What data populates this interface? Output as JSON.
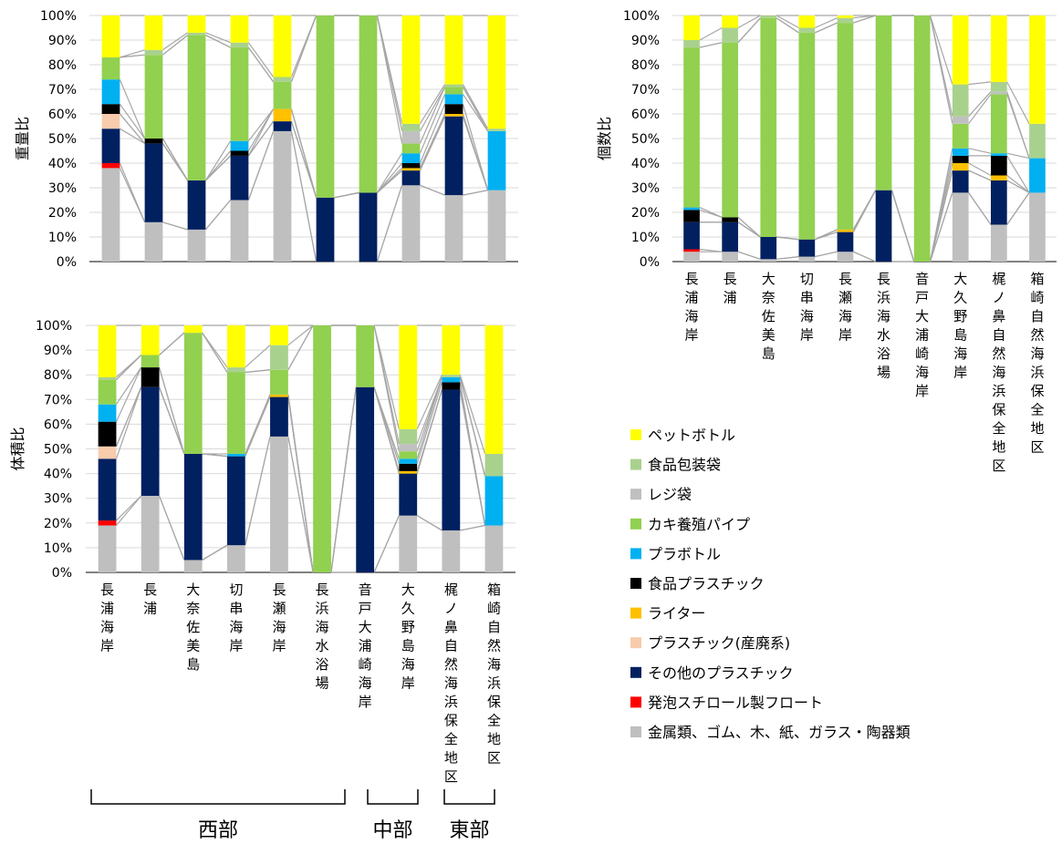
{
  "legend": [
    {
      "name": "ペットボトル",
      "color": "#FFFF00"
    },
    {
      "name": "食品包装袋",
      "color": "#A9D18E"
    },
    {
      "name": "レジ袋",
      "color": "#C0C0C0"
    },
    {
      "name": "カキ養殖パイプ",
      "color": "#92D050"
    },
    {
      "name": "プラボトル",
      "color": "#00B0F0"
    },
    {
      "name": "食品プラスチック",
      "color": "#000000"
    },
    {
      "name": "ライター",
      "color": "#FFC000"
    },
    {
      "name": "プラスチック(産廃系)",
      "color": "#F8CBAD"
    },
    {
      "name": "その他のプラスチック",
      "color": "#002060"
    },
    {
      "name": "発泡スチロール製フロート",
      "color": "#FF0000"
    },
    {
      "name": "金属類、ゴム、木、紙、ガラス・陶器類",
      "color": "#BFBFBF"
    }
  ],
  "regions": [
    "西部",
    "中部",
    "東部"
  ],
  "chart_data": [
    {
      "type": "bar",
      "stacked": "percent",
      "ylabel": "重量比",
      "ylim": [
        0,
        100
      ],
      "yticks": [
        "0%",
        "10%",
        "20%",
        "30%",
        "40%",
        "50%",
        "60%",
        "70%",
        "80%",
        "90%",
        "100%"
      ],
      "categories": [
        "長浦海岸",
        "長浦",
        "大奈佐美島",
        "切串海岸",
        "長瀬海岸",
        "長浜海水浴場",
        "音戸大浦崎海岸",
        "大久野島海岸",
        "梶ノ鼻自然海浜保全地区",
        "箱崎自然海浜保全地区"
      ],
      "series": [
        {
          "name": "金属類、ゴム、木、紙、ガラス・陶器類",
          "values": [
            38,
            16,
            13,
            25,
            53,
            0,
            0,
            31,
            27,
            29
          ]
        },
        {
          "name": "発泡スチロール製フロート",
          "values": [
            2,
            0,
            0,
            0,
            0,
            0,
            0,
            0,
            0,
            0
          ]
        },
        {
          "name": "その他のプラスチック",
          "values": [
            14,
            32,
            20,
            18,
            4,
            26,
            28,
            6,
            32,
            0
          ]
        },
        {
          "name": "プラスチック(産廃系)",
          "values": [
            6,
            0,
            0,
            0,
            0,
            0,
            0,
            0,
            0,
            0
          ]
        },
        {
          "name": "ライター",
          "values": [
            0,
            0,
            0,
            0,
            5,
            0,
            0,
            1,
            1,
            0
          ]
        },
        {
          "name": "食品プラスチック",
          "values": [
            4,
            2,
            0,
            2,
            0,
            0,
            0,
            2,
            4,
            0
          ]
        },
        {
          "name": "プラボトル",
          "values": [
            10,
            0,
            0,
            4,
            0,
            0,
            0,
            4,
            4,
            24
          ]
        },
        {
          "name": "カキ養殖パイプ",
          "values": [
            9,
            34,
            59,
            38,
            11,
            74,
            72,
            4,
            3,
            0
          ]
        },
        {
          "name": "レジ袋",
          "values": [
            0,
            0,
            0,
            0,
            0,
            0,
            0,
            5,
            0,
            0
          ]
        },
        {
          "name": "食品包装袋",
          "values": [
            0,
            2,
            1,
            2,
            2,
            0,
            0,
            3,
            1,
            1
          ]
        },
        {
          "name": "ペットボトル",
          "values": [
            17,
            14,
            7,
            11,
            25,
            0,
            0,
            44,
            28,
            46
          ]
        }
      ]
    },
    {
      "type": "bar",
      "stacked": "percent",
      "ylabel": "個数比",
      "ylim": [
        0,
        100
      ],
      "yticks": [
        "0%",
        "10%",
        "20%",
        "30%",
        "40%",
        "50%",
        "60%",
        "70%",
        "80%",
        "90%",
        "100%"
      ],
      "categories": [
        "長浦海岸",
        "長浦",
        "大奈佐美島",
        "切串海岸",
        "長瀬海岸",
        "長浜海水浴場",
        "音戸大浦崎海岸",
        "大久野島海岸",
        "梶ノ鼻自然海浜保全地区",
        "箱崎自然海浜保全地区"
      ],
      "series": [
        {
          "name": "金属類、ゴム、木、紙、ガラス・陶器類",
          "values": [
            4,
            4,
            1,
            2,
            4,
            0,
            0,
            28,
            15,
            28
          ]
        },
        {
          "name": "発泡スチロール製フロート",
          "values": [
            1,
            0,
            0,
            0,
            0,
            0,
            0,
            0,
            0,
            0
          ]
        },
        {
          "name": "その他のプラスチック",
          "values": [
            11,
            12,
            9,
            7,
            8,
            29,
            0,
            9,
            18,
            0
          ]
        },
        {
          "name": "プラスチック(産廃系)",
          "values": [
            0,
            0,
            0,
            0,
            0,
            0,
            0,
            0,
            0,
            0
          ]
        },
        {
          "name": "ライター",
          "values": [
            0,
            0,
            0,
            0,
            1,
            0,
            0,
            3,
            2,
            0
          ]
        },
        {
          "name": "食品プラスチック",
          "values": [
            5,
            2,
            0,
            0,
            0,
            0,
            0,
            3,
            8,
            0
          ]
        },
        {
          "name": "プラボトル",
          "values": [
            1,
            0,
            0,
            0,
            0,
            0,
            0,
            3,
            1,
            14
          ]
        },
        {
          "name": "カキ養殖パイプ",
          "values": [
            65,
            71,
            89,
            84,
            84,
            71,
            100,
            10,
            24,
            0
          ]
        },
        {
          "name": "レジ袋",
          "values": [
            0,
            0,
            0,
            0,
            0,
            0,
            0,
            3,
            1,
            0
          ]
        },
        {
          "name": "食品包装袋",
          "values": [
            3,
            6,
            1,
            2,
            2,
            0,
            0,
            13,
            4,
            14
          ]
        },
        {
          "name": "ペットボトル",
          "values": [
            10,
            5,
            0,
            5,
            1,
            0,
            0,
            28,
            27,
            44
          ]
        }
      ]
    },
    {
      "type": "bar",
      "stacked": "percent",
      "ylabel": "体積比",
      "ylim": [
        0,
        100
      ],
      "yticks": [
        "0%",
        "10%",
        "20%",
        "30%",
        "40%",
        "50%",
        "60%",
        "70%",
        "80%",
        "90%",
        "100%"
      ],
      "categories": [
        "長浦海岸",
        "長浦",
        "大奈佐美島",
        "切串海岸",
        "長瀬海岸",
        "長浜海水浴場",
        "音戸大浦崎海岸",
        "大久野島海岸",
        "梶ノ鼻自然海浜保全地区",
        "箱崎自然海浜保全地区"
      ],
      "series": [
        {
          "name": "金属類、ゴム、木、紙、ガラス・陶器類",
          "values": [
            19,
            31,
            5,
            11,
            55,
            0,
            0,
            23,
            17,
            19
          ]
        },
        {
          "name": "発泡スチロール製フロート",
          "values": [
            2,
            0,
            0,
            0,
            0,
            0,
            0,
            0,
            0,
            0
          ]
        },
        {
          "name": "その他のプラスチック",
          "values": [
            25,
            44,
            43,
            36,
            16,
            0,
            75,
            17,
            57,
            0
          ]
        },
        {
          "name": "プラスチック(産廃系)",
          "values": [
            5,
            0,
            0,
            0,
            0,
            0,
            0,
            0,
            0,
            0
          ]
        },
        {
          "name": "ライター",
          "values": [
            0,
            0,
            0,
            0,
            1,
            0,
            0,
            1,
            0,
            0
          ]
        },
        {
          "name": "食品プラスチック",
          "values": [
            10,
            8,
            0,
            0,
            0,
            0,
            0,
            3,
            3,
            0
          ]
        },
        {
          "name": "プラボトル",
          "values": [
            7,
            0,
            0,
            1,
            0,
            0,
            0,
            2,
            2,
            20
          ]
        },
        {
          "name": "カキ養殖パイプ",
          "values": [
            10,
            5,
            49,
            33,
            10,
            100,
            25,
            3,
            0,
            0
          ]
        },
        {
          "name": "レジ袋",
          "values": [
            0,
            0,
            0,
            0,
            0,
            0,
            0,
            3,
            0,
            0
          ]
        },
        {
          "name": "食品包装袋",
          "values": [
            1,
            0,
            0,
            2,
            10,
            0,
            0,
            6,
            1,
            9
          ]
        },
        {
          "name": "ペットボトル",
          "values": [
            21,
            12,
            3,
            17,
            8,
            0,
            0,
            42,
            20,
            52
          ]
        }
      ]
    }
  ]
}
